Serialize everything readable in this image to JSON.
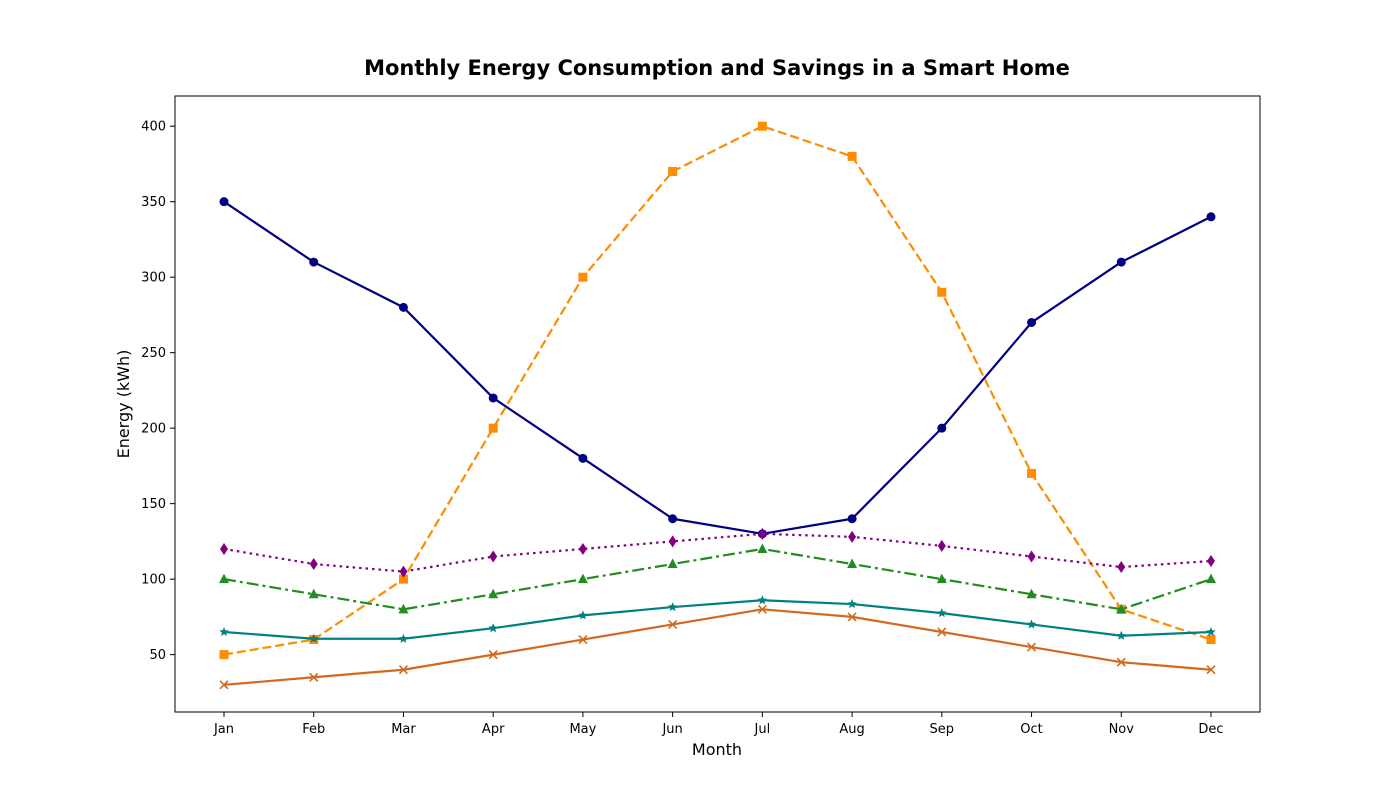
{
  "chart_data": {
    "type": "line",
    "title": "Monthly Energy Consumption and Savings in a Smart Home",
    "xlabel": "Month",
    "ylabel": "Energy (kWh)",
    "categories": [
      "Jan",
      "Feb",
      "Mar",
      "Apr",
      "May",
      "Jun",
      "Jul",
      "Aug",
      "Sep",
      "Oct",
      "Nov",
      "Dec"
    ],
    "ylim": [
      12,
      420
    ],
    "yticks": [
      50,
      100,
      150,
      200,
      250,
      300,
      350,
      400
    ],
    "grid": false,
    "legend": "none",
    "series": [
      {
        "color": "#000080",
        "line_style": "solid",
        "marker": "circle",
        "values": [
          350,
          310,
          280,
          220,
          180,
          140,
          130,
          140,
          200,
          270,
          310,
          340
        ]
      },
      {
        "color": "#ff8c00",
        "line_style": "dashed",
        "marker": "square",
        "values": [
          50,
          60,
          100,
          200,
          300,
          370,
          400,
          380,
          290,
          170,
          80,
          60
        ]
      },
      {
        "color": "#800080",
        "line_style": "dotted",
        "marker": "diamond",
        "values": [
          120,
          110,
          105,
          115,
          120,
          125,
          130,
          128,
          122,
          115,
          108,
          112
        ]
      },
      {
        "color": "#228b22",
        "line_style": "dashdot",
        "marker": "triangle",
        "values": [
          100,
          90,
          80,
          90,
          100,
          110,
          120,
          110,
          100,
          90,
          80,
          100
        ]
      },
      {
        "color": "#008080",
        "line_style": "solid",
        "marker": "star",
        "values": [
          65,
          60.5,
          60.5,
          67.5,
          76,
          81.5,
          86,
          83.5,
          77.5,
          70,
          62.5,
          65
        ]
      },
      {
        "color": "#d2691e",
        "line_style": "solid",
        "marker": "x",
        "values": [
          30,
          35,
          40,
          50,
          60,
          70,
          80,
          75,
          65,
          55,
          45,
          40
        ]
      }
    ]
  }
}
